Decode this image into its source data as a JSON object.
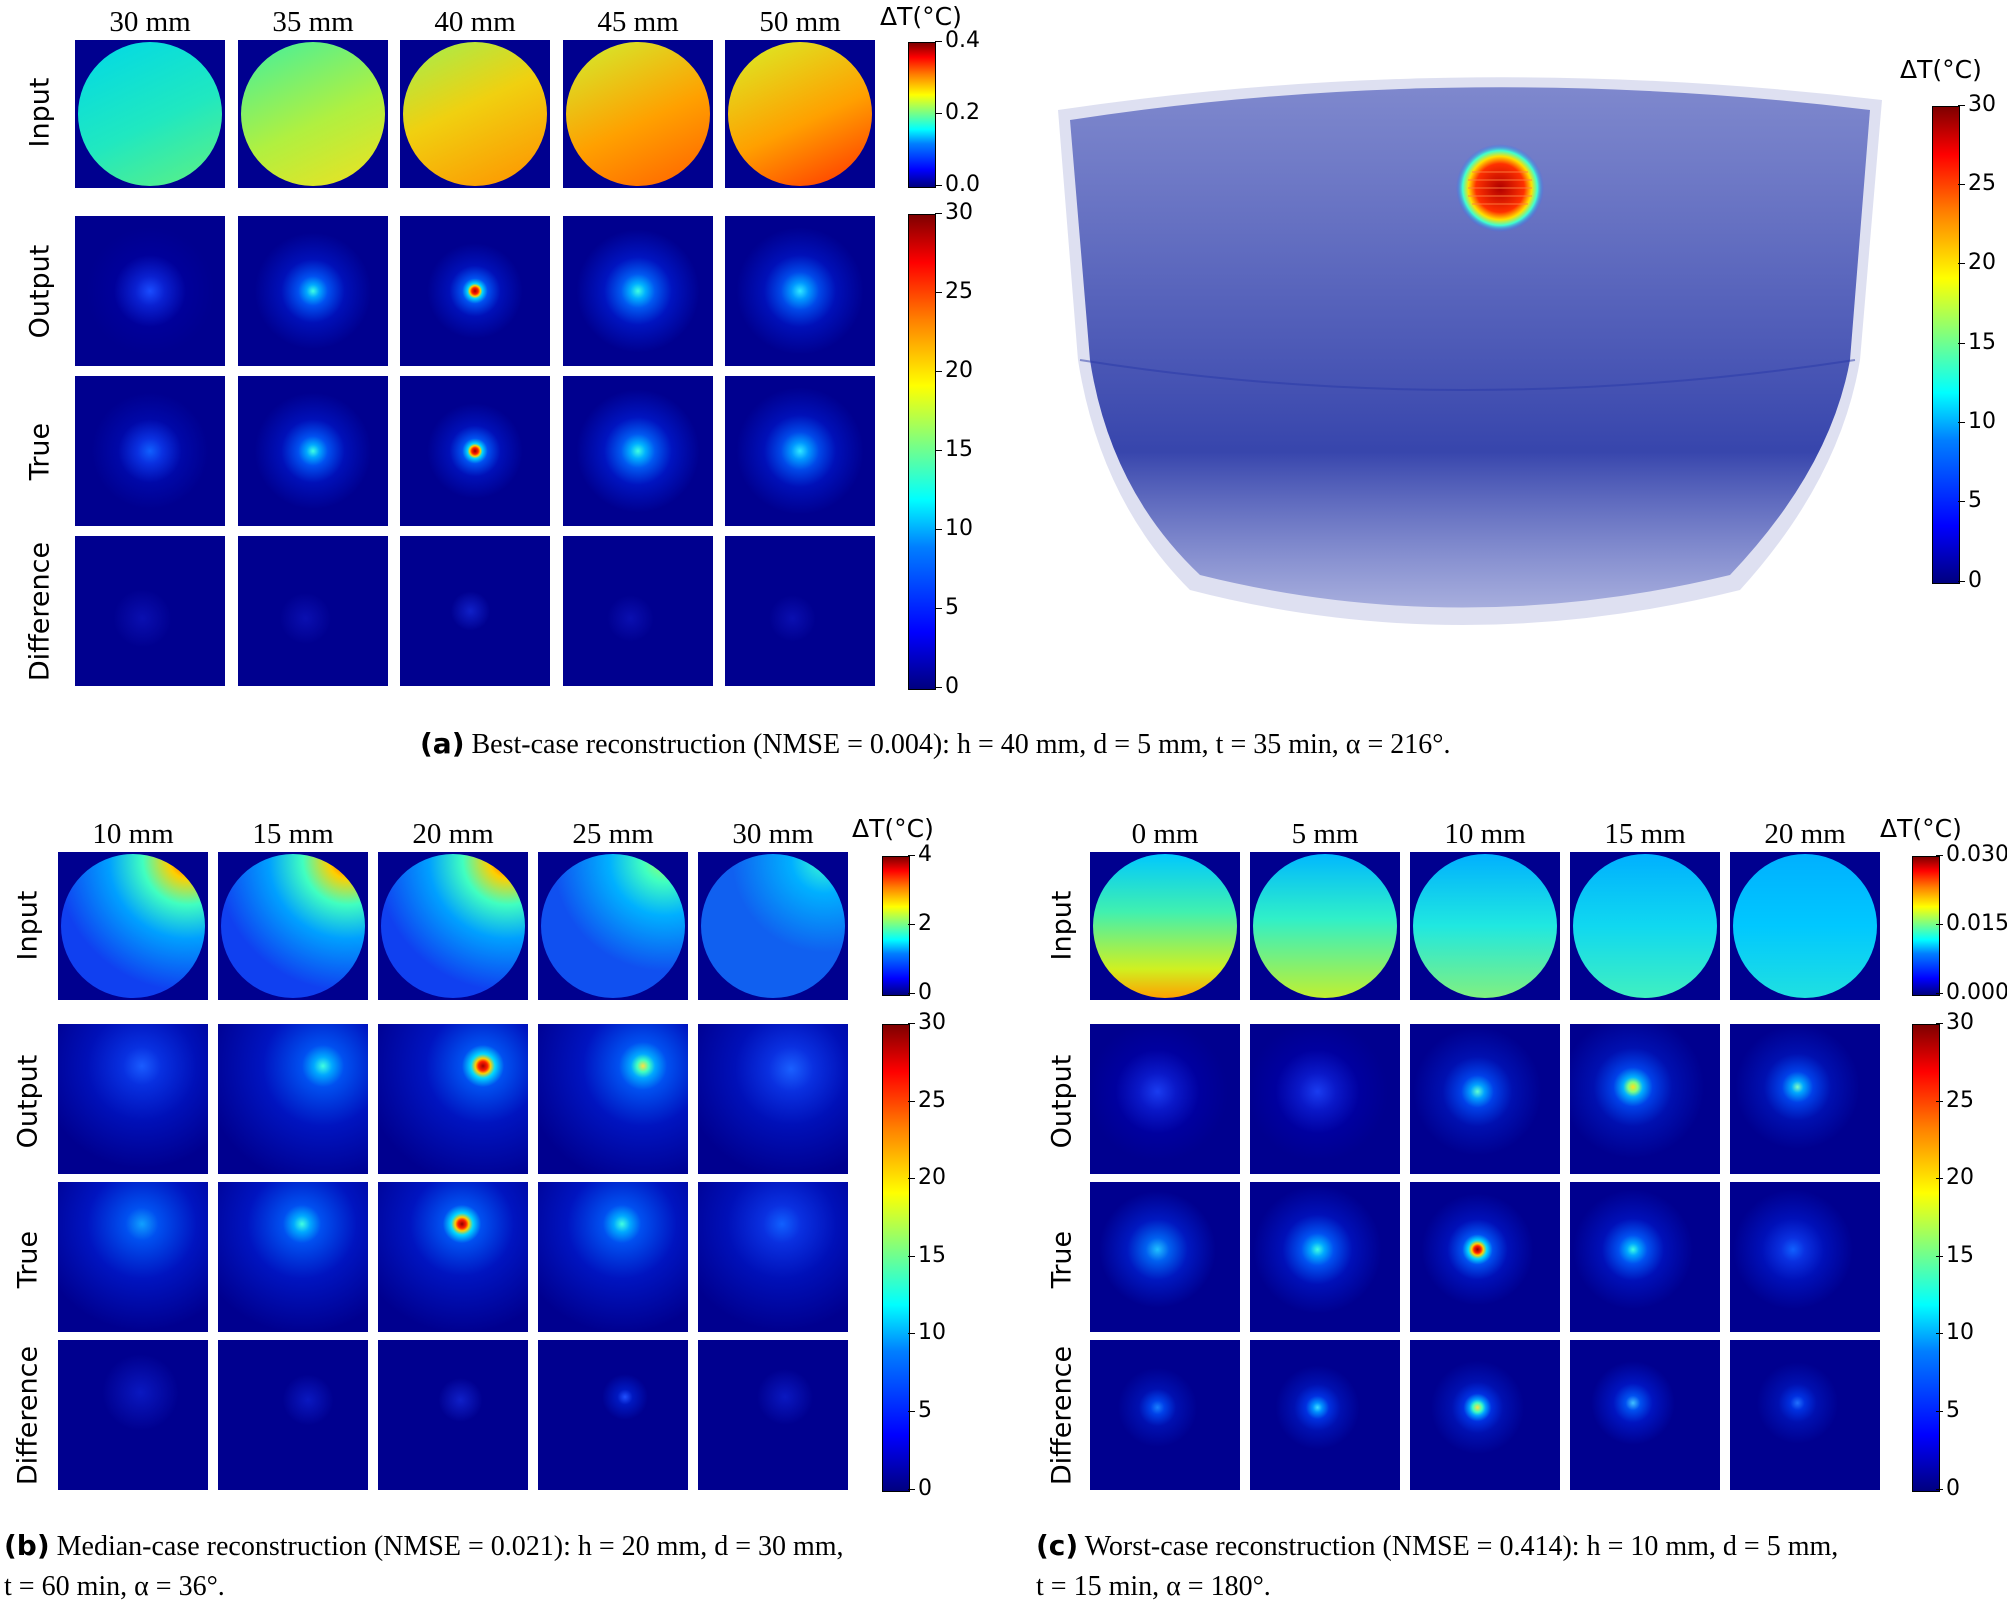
{
  "panel_a": {
    "columns": [
      "30 mm",
      "35 mm",
      "40 mm",
      "45 mm",
      "50 mm"
    ],
    "rows": [
      "Input",
      "Output",
      "True",
      "Difference"
    ],
    "input_colorbar": {
      "unit": "ΔT(°C)",
      "ticks": [
        "0.4",
        "0.2",
        "0.0"
      ]
    },
    "output_colorbar": {
      "ticks": [
        "30",
        "25",
        "20",
        "15",
        "10",
        "5",
        "0"
      ]
    },
    "volume_colorbar": {
      "unit": "ΔT(°C)",
      "ticks": [
        "30",
        "25",
        "20",
        "15",
        "10",
        "5",
        "0"
      ]
    },
    "caption": {
      "label": "(a)",
      "text": "Best-case reconstruction (NMSE = 0.004): h = 40 mm, d = 5 mm, t = 35 min, α = 216°."
    }
  },
  "panel_b": {
    "columns": [
      "10 mm",
      "15 mm",
      "20 mm",
      "25 mm",
      "30 mm"
    ],
    "rows": [
      "Input",
      "Output",
      "True",
      "Difference"
    ],
    "input_colorbar": {
      "unit": "ΔT(°C)",
      "ticks": [
        "4",
        "2",
        "0"
      ]
    },
    "output_colorbar": {
      "ticks": [
        "30",
        "25",
        "20",
        "15",
        "10",
        "5",
        "0"
      ]
    },
    "caption": {
      "label": "(b)",
      "line1": "Median-case reconstruction (NMSE = 0.021): h = 20 mm, d = 30 mm,",
      "line2": "t = 60 min, α = 36°."
    }
  },
  "panel_c": {
    "columns": [
      "0 mm",
      "5 mm",
      "10 mm",
      "15 mm",
      "20 mm"
    ],
    "rows": [
      "Input",
      "Output",
      "True",
      "Difference"
    ],
    "input_colorbar": {
      "unit": "ΔT(°C)",
      "ticks": [
        "0.030",
        "0.015",
        "0.000"
      ]
    },
    "output_colorbar": {
      "ticks": [
        "30",
        "25",
        "20",
        "15",
        "10",
        "5",
        "0"
      ]
    },
    "caption": {
      "label": "(c)",
      "line1": "Worst-case reconstruction (NMSE = 0.414): h = 10 mm, d = 5 mm,",
      "line2": "t = 15 min, α = 180°."
    }
  }
}
